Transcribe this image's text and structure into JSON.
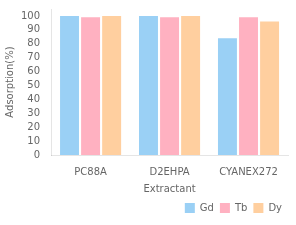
{
  "chart_data": {
    "type": "bar",
    "categories": [
      "PC88A",
      "D2EHPA",
      "CYANEX272"
    ],
    "series": [
      {
        "name": "Gd",
        "values": [
          100,
          100,
          84
        ]
      },
      {
        "name": "Tb",
        "values": [
          99,
          99,
          99
        ]
      },
      {
        "name": "Dy",
        "values": [
          100,
          100,
          96
        ]
      }
    ],
    "xlabel": "Extractant",
    "ylabel": "Adsorption(%)",
    "ylim": [
      0,
      105
    ],
    "yticks": [
      0,
      10,
      20,
      30,
      40,
      50,
      60,
      70,
      80,
      90,
      100
    ],
    "grid": false,
    "legend": "lower right"
  }
}
